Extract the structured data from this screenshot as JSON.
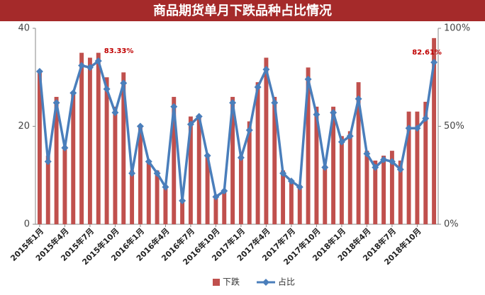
{
  "chart_data": {
    "type": "bar-line",
    "title": "商品期货单月下跌品种占比情况",
    "categories": [
      "2015年1月",
      null,
      null,
      "2015年4月",
      null,
      null,
      "2015年7月",
      null,
      null,
      "2015年10月",
      null,
      null,
      "2016年1月",
      null,
      null,
      "2016年4月",
      null,
      null,
      "2016年7月",
      null,
      null,
      "2016年10月",
      null,
      null,
      "2017年1月",
      null,
      null,
      "2017年4月",
      null,
      null,
      "2017年7月",
      null,
      null,
      "2017年10月",
      null,
      null,
      "2018年1月",
      null,
      null,
      "2018年4月",
      null,
      null,
      "2018年7月",
      null,
      null,
      "2018年10月",
      null,
      null
    ],
    "series": [
      {
        "name": "下跌",
        "type": "bar",
        "color": "#c0504d",
        "values": [
          31,
          14,
          26,
          16,
          27,
          35,
          34,
          35,
          30,
          24,
          31,
          11,
          20,
          13,
          11,
          8,
          26,
          5,
          22,
          22,
          14,
          6,
          7,
          26,
          14,
          21,
          29,
          34,
          26,
          11,
          9,
          8,
          32,
          24,
          12,
          24,
          18,
          19,
          29,
          15,
          13,
          14,
          15,
          13,
          23,
          23,
          25,
          38
        ]
      },
      {
        "name": "占比",
        "type": "line",
        "axis": "y2",
        "color": "#4a7ebb",
        "values": [
          78,
          32,
          62,
          39,
          67,
          81,
          80,
          83.33,
          69,
          57,
          72,
          26,
          50,
          32,
          26,
          19,
          60,
          12,
          51,
          55,
          35,
          14,
          17,
          62,
          34,
          48,
          70,
          79,
          62,
          26,
          22,
          19,
          74,
          56,
          29,
          57,
          42,
          45,
          64,
          36,
          29,
          33,
          32,
          28,
          49,
          49,
          54,
          82.61
        ],
        "value_labels": [
          null,
          null,
          null,
          null,
          null,
          null,
          null,
          "83.33%",
          null,
          null,
          null,
          null,
          null,
          null,
          null,
          null,
          null,
          null,
          null,
          null,
          null,
          null,
          null,
          null,
          null,
          null,
          null,
          null,
          null,
          null,
          null,
          null,
          null,
          null,
          null,
          null,
          null,
          null,
          null,
          null,
          null,
          null,
          null,
          null,
          null,
          null,
          null,
          "82.61%"
        ]
      }
    ],
    "ylim": [
      0,
      40
    ],
    "yticks": [
      0,
      20,
      40
    ],
    "y2lim": [
      0,
      100
    ],
    "y2ticks": [
      {
        "value": 0,
        "label": "0%"
      },
      {
        "value": 50,
        "label": "50%"
      },
      {
        "value": 100,
        "label": "100%"
      }
    ],
    "legend": "bottom"
  }
}
